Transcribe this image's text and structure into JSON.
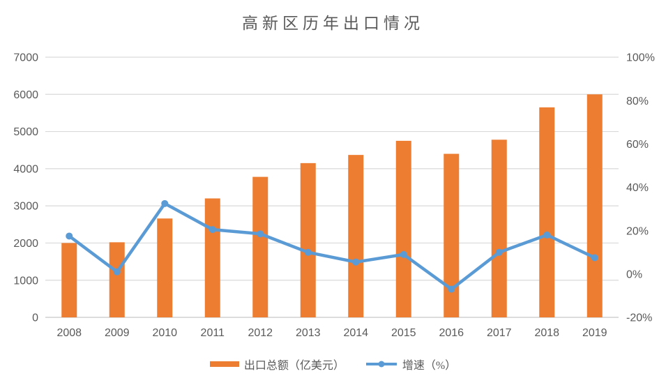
{
  "title": "高新区历年出口情况",
  "legend": {
    "bar_label": "出口总额（亿美元）",
    "line_label": "增速（%）"
  },
  "colors": {
    "bar": "#ED7D31",
    "line": "#5B9BD5",
    "grid": "#D9D9D9",
    "axis_line": "#D0D0D0",
    "axis_text": "#595959",
    "title_text": "#595959",
    "background": "#FFFFFF"
  },
  "chart_data": {
    "type": "combo-bar-line",
    "title": "高新区历年出口情况",
    "categories": [
      "2008",
      "2009",
      "2010",
      "2011",
      "2012",
      "2013",
      "2014",
      "2015",
      "2016",
      "2017",
      "2018",
      "2019"
    ],
    "series": [
      {
        "name": "出口总额（亿美元）",
        "type": "bar",
        "axis": "left",
        "color": "#ED7D31",
        "values": [
          2000,
          2020,
          2660,
          3200,
          3780,
          4150,
          4370,
          4750,
          4400,
          4780,
          5650,
          6000
        ]
      },
      {
        "name": "增速（%）",
        "type": "line",
        "axis": "right",
        "color": "#5B9BD5",
        "values": [
          17.5,
          1,
          32.5,
          20.5,
          18.5,
          10,
          5.5,
          9,
          -7,
          10,
          18,
          7.5
        ]
      }
    ],
    "left_axis": {
      "min": 0,
      "max": 7000,
      "step": 1000,
      "tick_labels": [
        "0",
        "1000",
        "2000",
        "3000",
        "4000",
        "5000",
        "6000",
        "7000"
      ]
    },
    "right_axis": {
      "min": -20,
      "max": 100,
      "step": 20,
      "tick_labels": [
        "-20%",
        "0%",
        "20%",
        "40%",
        "60%",
        "80%",
        "100%"
      ]
    },
    "grid": true,
    "legend_position": "bottom"
  }
}
